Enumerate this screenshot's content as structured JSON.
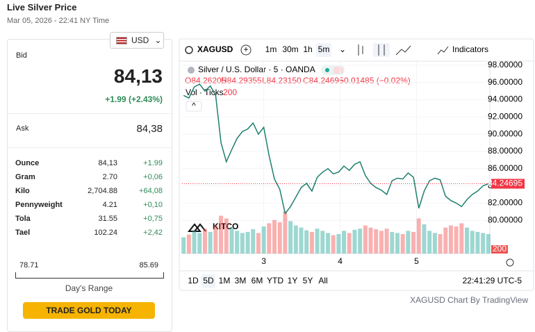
{
  "header": {
    "title": "Live Silver Price",
    "timestamp": "Mar 05, 2026 - 22:41 NY Time",
    "currency": "USD"
  },
  "quote": {
    "bid_label": "Bid",
    "bid": "84,13",
    "change": "+1.99 (+2.43%)",
    "ask_label": "Ask",
    "ask": "84,38"
  },
  "table": {
    "rows": [
      [
        "Ounce",
        "84,13",
        "+1.99"
      ],
      [
        "Gram",
        "2.70",
        "+0,06"
      ],
      [
        "Kilo",
        "2,704.88",
        "+64,08"
      ],
      [
        "Pennyweight",
        "4.21",
        "+0,10"
      ],
      [
        "Tola",
        "31.55",
        "+0,75"
      ],
      [
        "Tael",
        "102.24",
        "+2,42"
      ]
    ]
  },
  "range": {
    "low": "78.71",
    "high": "85.69",
    "label": "Day's Range"
  },
  "button": "TRADE GOLD TODAY",
  "toolbar": {
    "intervals": [
      "1m",
      "30m",
      "1h",
      "5m"
    ],
    "indicators": "Indicators"
  },
  "legend": {
    "ohlc": [
      "O84.26205",
      "H84.29355",
      "L84.23150",
      "C84.24695",
      "−0.01485 (−0.02%)"
    ],
    "volume_label": "Vol · Ticks",
    "volume_value": "200"
  },
  "footer": {
    "periods": [
      "1D",
      "5D",
      "1M",
      "3M",
      "6M",
      "YTD",
      "1Y",
      "5Y",
      "All"
    ],
    "clock": "22:41:29 UTC-5",
    "credit": "XAGUSD Chart By TradingView",
    "watermark": "KITCO"
  },
  "chart_data": {
    "type": "line",
    "title": "Silver / U.S. Dollar · 5 · OANDA",
    "x": [
      1.95,
      2.02,
      2.09,
      2.16,
      2.23,
      2.3,
      2.37,
      2.44,
      2.51,
      2.58,
      2.65,
      2.72,
      2.79,
      2.86,
      2.93,
      3.0,
      3.07,
      3.14,
      3.21,
      3.28,
      3.35,
      3.42,
      3.49,
      3.56,
      3.63,
      3.7,
      3.77,
      3.84,
      3.91,
      3.98,
      4.05,
      4.12,
      4.19,
      4.26,
      4.33,
      4.4,
      4.47,
      4.54,
      4.61,
      4.68,
      4.75,
      4.82,
      4.89,
      4.96,
      5.03,
      5.1,
      5.17,
      5.24,
      5.31,
      5.38,
      5.45,
      5.52,
      5.59,
      5.66,
      5.73,
      5.8,
      5.87,
      5.94
    ],
    "xlim": [
      1.93,
      5.96
    ],
    "xticks": [
      3,
      4,
      5
    ],
    "ylim": [
      76.15,
      98.48
    ],
    "yticks": [
      {
        "value": 80,
        "label": "80.00000"
      },
      {
        "value": 82,
        "label": "82.00000"
      },
      {
        "value": 84,
        "label": "84.00000"
      },
      {
        "value": 86,
        "label": "86.00000"
      },
      {
        "value": 88,
        "label": "88.00000"
      },
      {
        "value": 90,
        "label": "90.00000"
      },
      {
        "value": 92,
        "label": "92.00000"
      },
      {
        "value": 94,
        "label": "94.00000"
      },
      {
        "value": 96,
        "label": "96.00000"
      },
      {
        "value": 98,
        "label": "98.00000"
      }
    ],
    "grid": true,
    "series": [
      {
        "name": "XAGUSD",
        "color": "#1e7f6e",
        "values": [
          94.5,
          94.2,
          95.5,
          95.8,
          95.0,
          95.6,
          94.5,
          89.0,
          86.8,
          88.2,
          89.5,
          90.3,
          90.6,
          91.3,
          90.0,
          90.8,
          87.5,
          84.8,
          83.6,
          80.8,
          81.6,
          82.7,
          83.8,
          84.3,
          83.4,
          85.0,
          85.6,
          86.0,
          85.4,
          85.6,
          86.3,
          85.8,
          86.5,
          86.8,
          85.2,
          84.3,
          83.8,
          83.5,
          83.0,
          84.6,
          84.9,
          84.8,
          85.5,
          85.0,
          81.4,
          83.4,
          84.6,
          84.9,
          84.7,
          82.8,
          82.3,
          82.0,
          81.6,
          82.4,
          83.0,
          83.4,
          84.0,
          84.25
        ]
      }
    ],
    "volume": {
      "color_up": "#26a69a",
      "color_down": "#ef5350",
      "vlim": [
        0,
        900
      ],
      "values": [
        300,
        350,
        420,
        380,
        460,
        400,
        520,
        700,
        650,
        480,
        420,
        380,
        400,
        450,
        380,
        500,
        560,
        620,
        580,
        780,
        600,
        520,
        480,
        430,
        400,
        460,
        420,
        380,
        340,
        360,
        420,
        380,
        440,
        460,
        520,
        480,
        450,
        420,
        460,
        400,
        380,
        360,
        420,
        400,
        650,
        540,
        420,
        380,
        360,
        480,
        520,
        500,
        560,
        480,
        420,
        400,
        380,
        360
      ]
    },
    "last_price": 84.24695,
    "last_price_color": "#f23645"
  }
}
